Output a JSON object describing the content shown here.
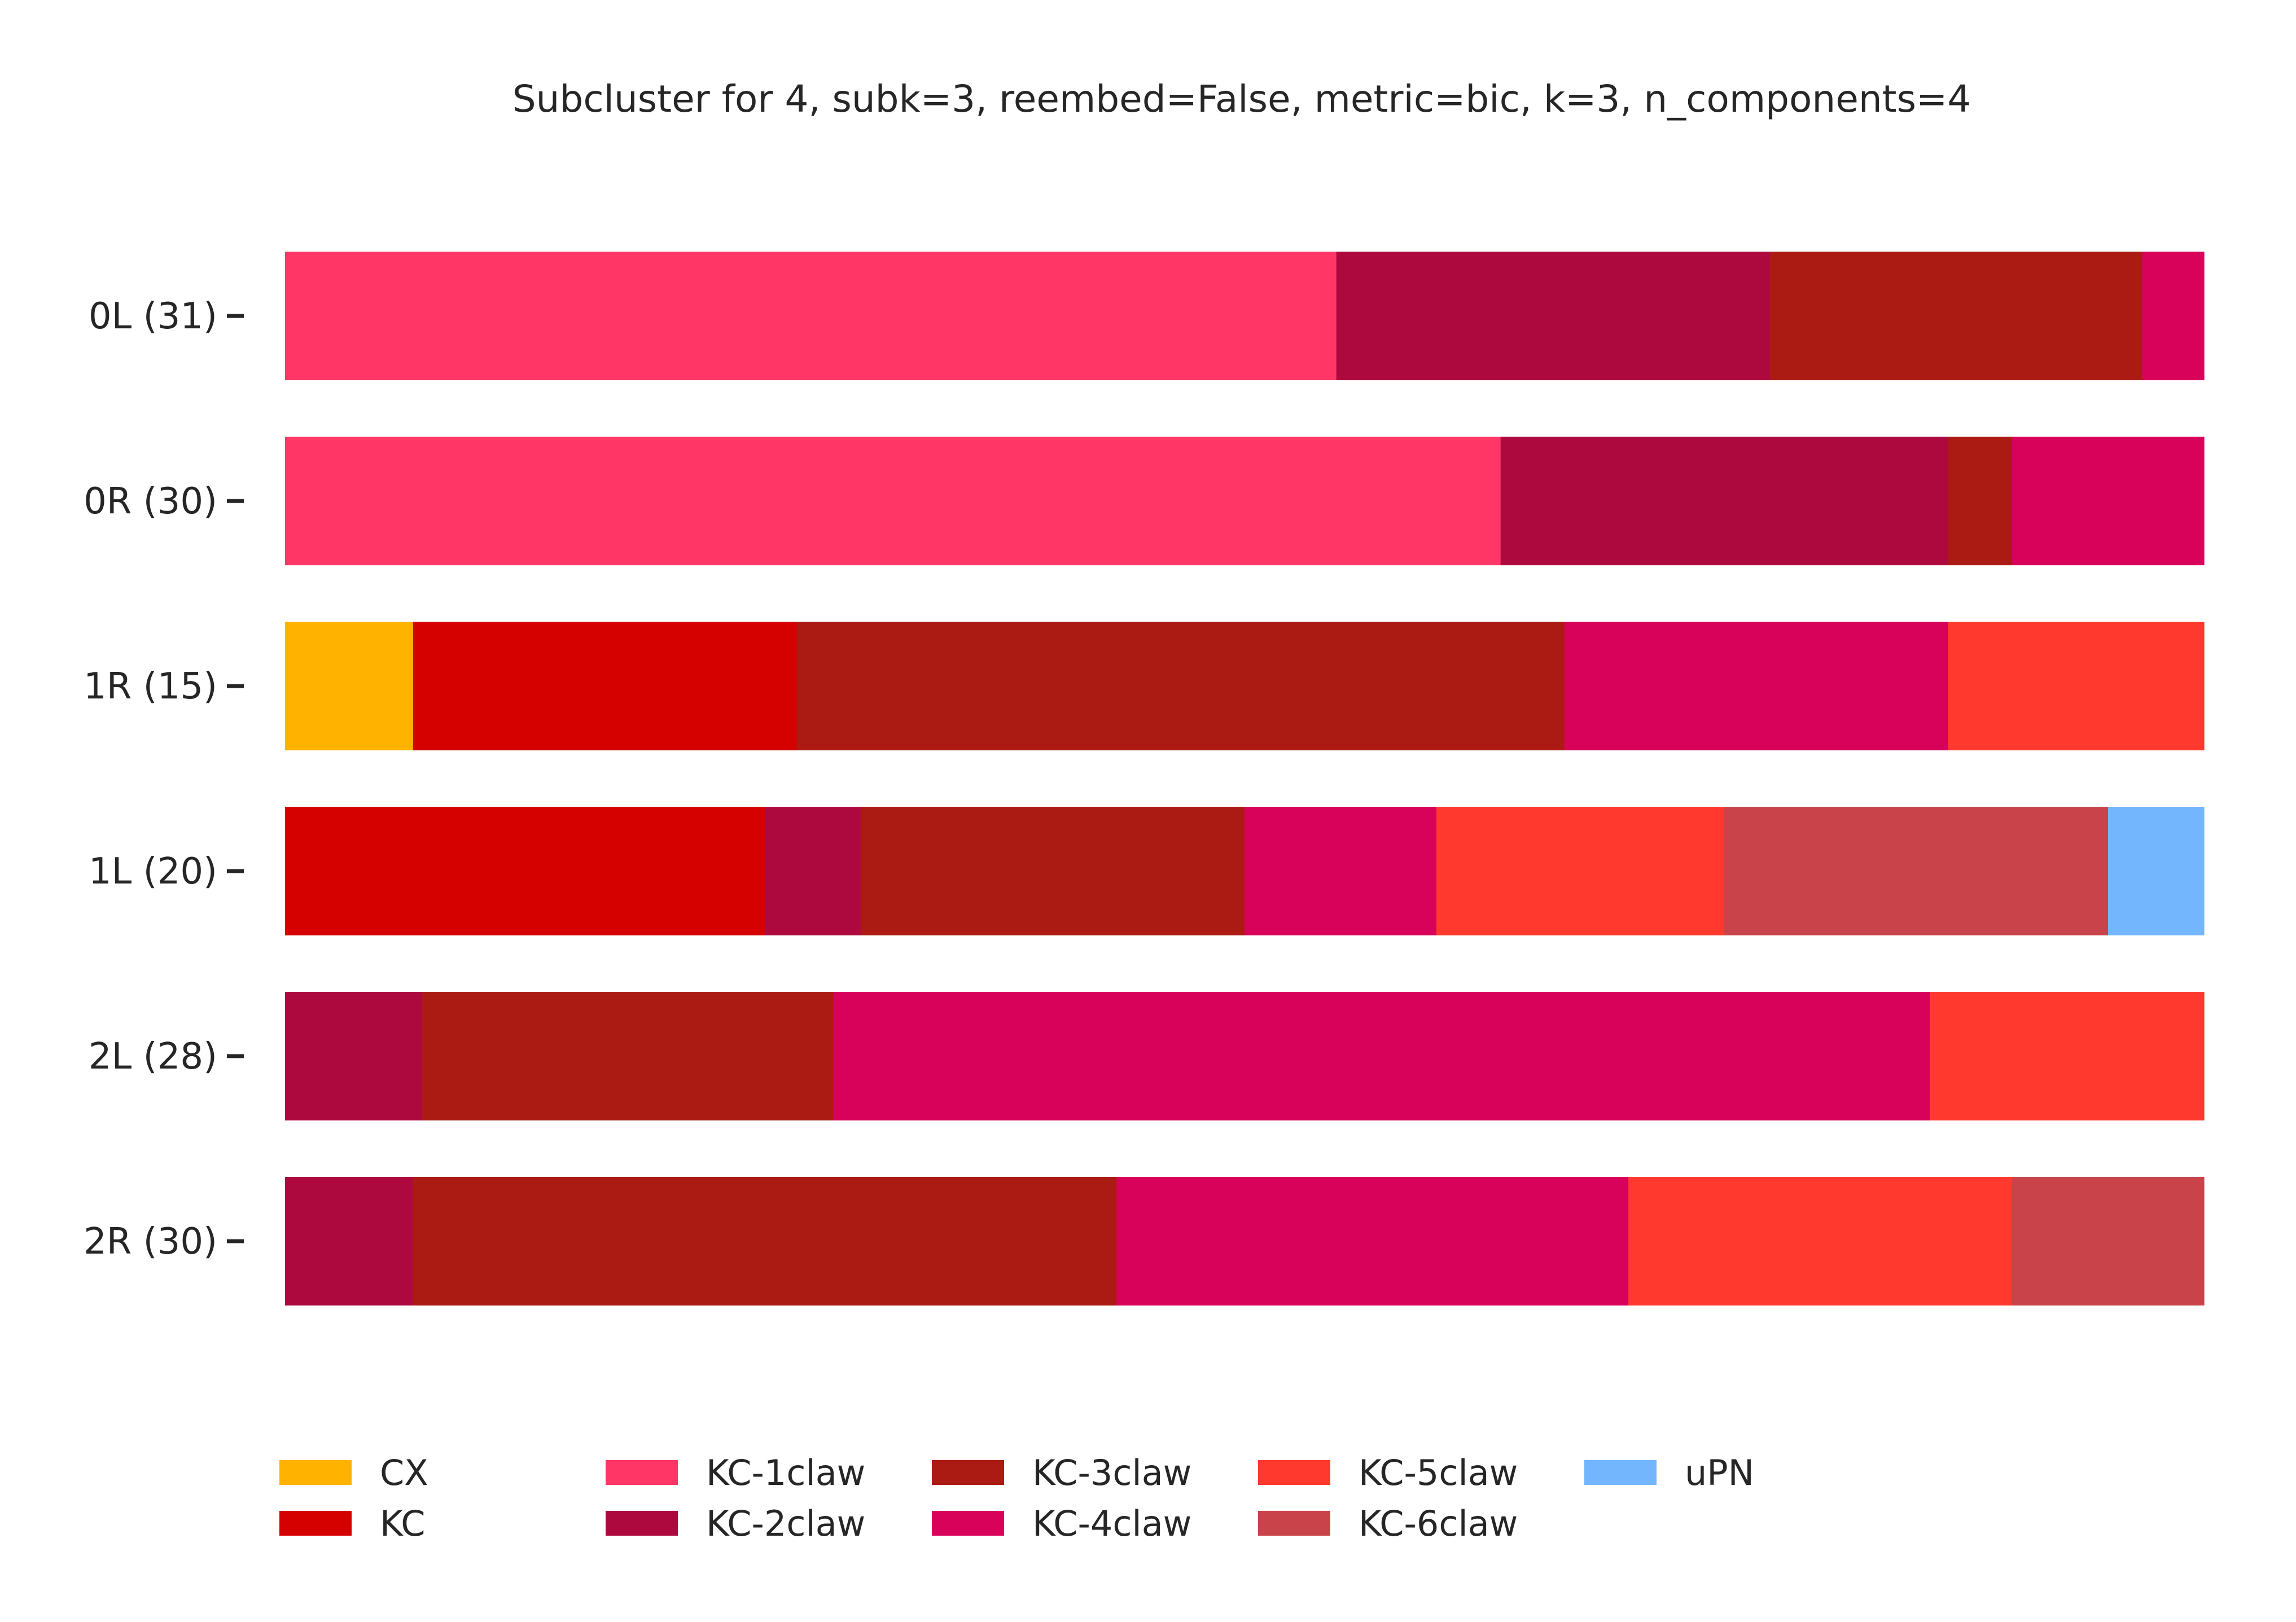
{
  "chart_data": {
    "type": "bar",
    "orientation": "horizontal",
    "stacked": true,
    "normalized": true,
    "title": "Subcluster for 4, subk=3, reembed=False, metric=bic, k=3, n_components=4",
    "xlabel": "",
    "ylabel": "",
    "xlim": [
      0,
      1
    ],
    "grid": false,
    "legend_position": "bottom",
    "categories": [
      "0L (31)",
      "0R (30)",
      "1R (15)",
      "1L (20)",
      "2L (28)",
      "2R (30)"
    ],
    "series": [
      {
        "name": "CX",
        "color": "#ffb300",
        "values": [
          0,
          0,
          0.0667,
          0,
          0,
          0
        ]
      },
      {
        "name": "KC",
        "color": "#d50000",
        "values": [
          0,
          0,
          0.2,
          0.25,
          0,
          0
        ]
      },
      {
        "name": "KC-1claw",
        "color": "#ff3666",
        "values": [
          0.548,
          0.633,
          0,
          0,
          0,
          0
        ]
      },
      {
        "name": "KC-2claw",
        "color": "#ae093f",
        "values": [
          0.226,
          0.233,
          0,
          0.05,
          0.0714,
          0.0667
        ]
      },
      {
        "name": "KC-3claw",
        "color": "#ac1a14",
        "values": [
          0.194,
          0.0333,
          0.4,
          0.2,
          0.2143,
          0.3667
        ]
      },
      {
        "name": "KC-4claw",
        "color": "#d8025b",
        "values": [
          0.0323,
          0.1,
          0.2,
          0.1,
          0.5714,
          0.2667
        ]
      },
      {
        "name": "KC-5claw",
        "color": "#ff392d",
        "values": [
          0,
          0,
          0.1333,
          0.15,
          0.1429,
          0.2
        ]
      },
      {
        "name": "KC-6claw",
        "color": "#c9434a",
        "values": [
          0,
          0,
          0,
          0.2,
          0,
          0.1
        ]
      },
      {
        "name": "uPN",
        "color": "#74b6fd",
        "values": [
          0,
          0,
          0,
          0.05,
          0,
          0
        ]
      }
    ]
  }
}
